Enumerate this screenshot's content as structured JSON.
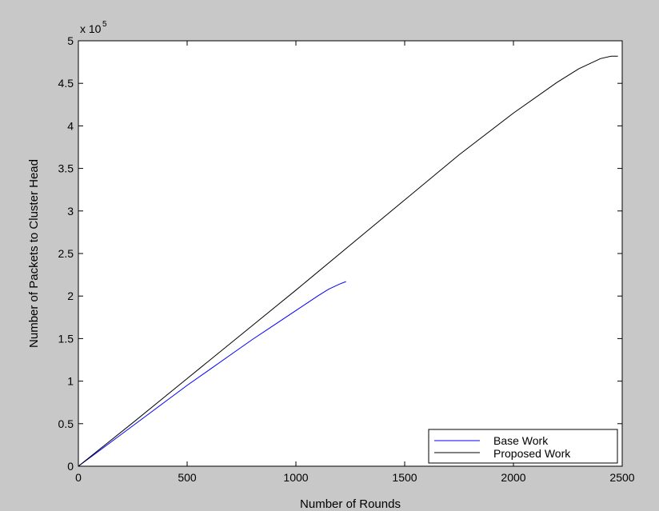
{
  "chart_data": {
    "type": "line",
    "title": "",
    "xlabel": "Number of Rounds",
    "ylabel": "Number of  Packets to Cluster Head",
    "xlim": [
      0,
      2500
    ],
    "ylim": [
      0,
      500000
    ],
    "xticks": [
      0,
      500,
      1000,
      1500,
      2000,
      2500
    ],
    "xtick_labels": [
      "0",
      "500",
      "1000",
      "1500",
      "2000",
      "2500"
    ],
    "yticks": [
      0,
      50000,
      100000,
      150000,
      200000,
      250000,
      300000,
      350000,
      400000,
      450000,
      500000
    ],
    "ytick_labels": [
      "0",
      "0.5",
      "1",
      "1.5",
      "2",
      "2.5",
      "3",
      "3.5",
      "4",
      "4.5",
      "5"
    ],
    "y_multiplier_base": "x 10",
    "y_multiplier_exp": "5",
    "grid": false,
    "legend_position": "bottom-right",
    "series": [
      {
        "name": "Base Work",
        "color": "#0000ff",
        "x": [
          0,
          100,
          200,
          300,
          400,
          500,
          600,
          700,
          800,
          900,
          1000,
          1100,
          1150,
          1200,
          1230
        ],
        "y": [
          0,
          19000,
          38000,
          57000,
          76000,
          95000,
          113000,
          131000,
          149000,
          166000,
          183000,
          200000,
          208000,
          214000,
          217000
        ]
      },
      {
        "name": "Proposed Work",
        "color": "#000000",
        "x": [
          0,
          250,
          500,
          750,
          1000,
          1250,
          1500,
          1750,
          2000,
          2200,
          2300,
          2400,
          2450,
          2480
        ],
        "y": [
          0,
          51000,
          103000,
          155000,
          207000,
          260000,
          313000,
          366000,
          415000,
          451000,
          467000,
          479000,
          482000,
          482000
        ]
      }
    ]
  }
}
